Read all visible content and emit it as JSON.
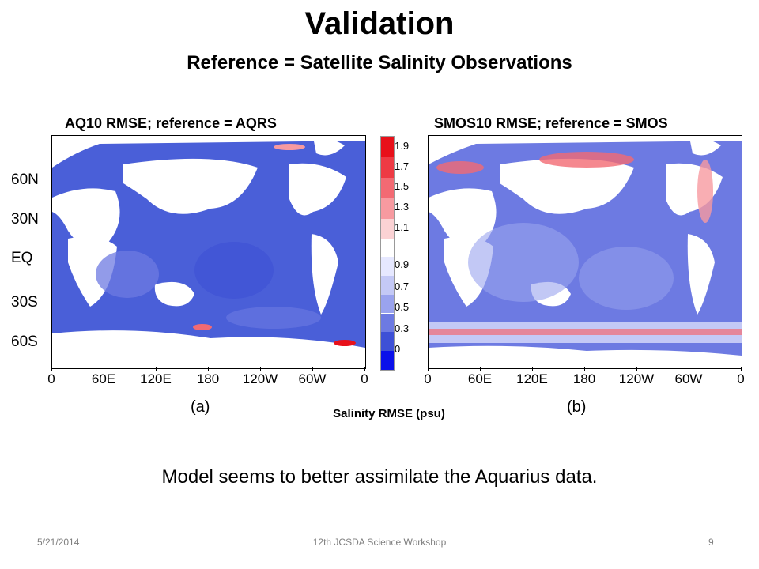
{
  "slide": {
    "title": "Validation",
    "subtitle": "Reference = Satellite Salinity Observations",
    "conclusion": "Model seems to better assimilate the Aquarius data."
  },
  "panels": [
    {
      "title": "AQ10 RMSE; reference = AQRS",
      "caption": "(a)"
    },
    {
      "title": "SMOS10 RMSE; reference = SMOS",
      "caption": "(b)"
    }
  ],
  "axes": {
    "lat_labels": [
      "60N",
      "30N",
      "EQ",
      "30S",
      "60S"
    ],
    "lon_labels": [
      "0",
      "60E",
      "120E",
      "180",
      "120W",
      "60W",
      "0"
    ]
  },
  "colorbar": {
    "title": "Salinity RMSE (psu)",
    "labels": [
      "1.9",
      "1.7",
      "1.5",
      "1.3",
      "1.1",
      "0.9",
      "0.7",
      "0.5",
      "0.3",
      "0"
    ],
    "colors": {
      "high": [
        "#e8101a",
        "#ee3a44",
        "#f36a73",
        "#f79aa0",
        "#fbd2d4"
      ],
      "low": [
        "#e6e8ff",
        "#c4c9f6",
        "#9aa3ee",
        "#6d7ae2",
        "#3e50d6",
        "#0a10ea"
      ],
      "land": "#ffffff"
    }
  },
  "footer": {
    "date": "5/21/2014",
    "event": "12th JCSDA Science Workshop",
    "page": "9"
  }
}
